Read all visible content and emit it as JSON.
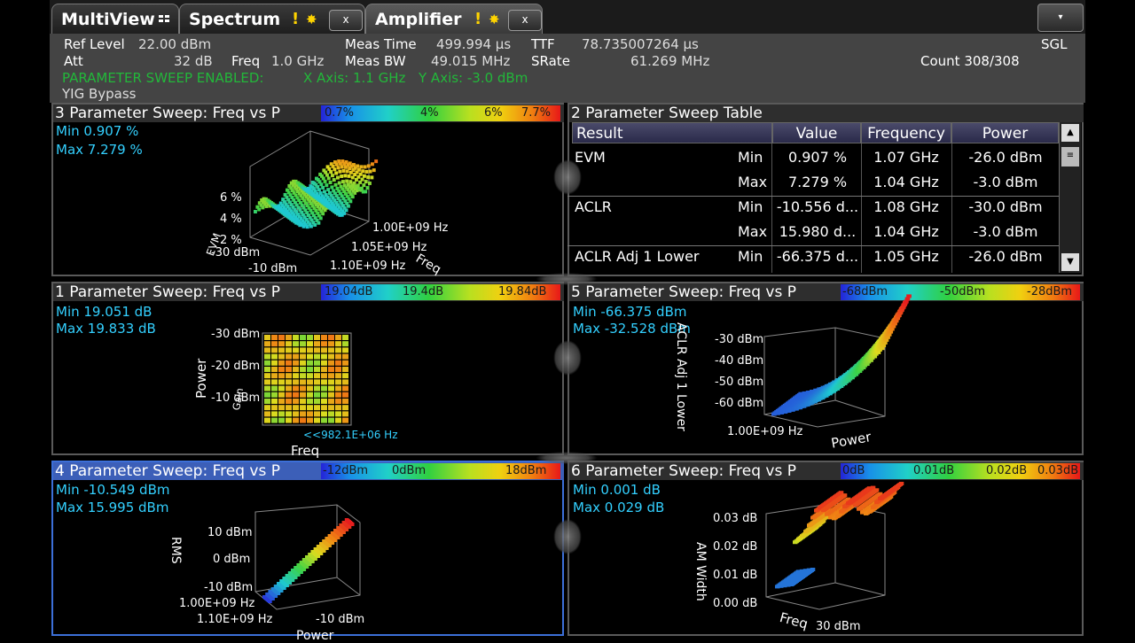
{
  "tabs": [
    {
      "label": "MultiView",
      "close": ""
    },
    {
      "label": "Spectrum",
      "close": "x"
    },
    {
      "label": "Amplifier",
      "close": "x"
    }
  ],
  "menu_button": "▾",
  "header": {
    "ref_level_label": "Ref Level",
    "ref_level_value": "22.00 dBm",
    "att_label": "Att",
    "att_value": "32 dB",
    "freq_label": "Freq",
    "freq_value": "1.0 GHz",
    "meas_time_label": "Meas Time",
    "meas_time_value": "499.994 µs",
    "meas_bw_label": "Meas BW",
    "meas_bw_value": "49.015 MHz",
    "ttf_label": "TTF",
    "ttf_value": "78.735007264 µs",
    "srate_label": "SRate",
    "srate_value": "61.269 MHz",
    "sgl": "SGL",
    "count": "Count 308/308",
    "param_sweep": "PARAMETER SWEEP ENABLED:",
    "x_axis": "X Axis: 1.1 GHz",
    "y_axis": "Y Axis: -3.0 dBm",
    "yig": "YIG Bypass"
  },
  "panels": {
    "p3": {
      "title": "3 Parameter Sweep: Freq vs P",
      "scale": [
        "0.7%",
        "4%",
        "6%",
        "7.7%"
      ],
      "min": "Min  0.907 %",
      "max": "Max  7.279 %",
      "z_ticks": [
        "6 %",
        "4 %",
        "2 %"
      ],
      "z_label": "EVM",
      "y_ticks": [
        "1.00E+09 Hz",
        "1.05E+09 Hz",
        "1.10E+09 Hz"
      ],
      "x_ticks": [
        "-30 dBm",
        "-10 dBm"
      ],
      "y_label": "Freq"
    },
    "p2": {
      "title": "2 Parameter Sweep Table",
      "columns": [
        "Result",
        "Value",
        "Frequency",
        "Power"
      ],
      "rows": [
        {
          "result": "EVM",
          "kind": "Min",
          "value": "0.907 %",
          "freq": "1.07 GHz",
          "power": "-26.0 dBm"
        },
        {
          "result": "",
          "kind": "Max",
          "value": "7.279 %",
          "freq": "1.04 GHz",
          "power": "-3.0 dBm"
        },
        {
          "result": "ACLR",
          "kind": "Min",
          "value": "-10.556 d...",
          "freq": "1.08 GHz",
          "power": "-30.0 dBm"
        },
        {
          "result": "",
          "kind": "Max",
          "value": "15.980 d...",
          "freq": "1.04 GHz",
          "power": "-3.0 dBm"
        },
        {
          "result": "ACLR Adj 1 Lower",
          "kind": "Min",
          "value": "-66.375 d...",
          "freq": "1.05 GHz",
          "power": "-26.0 dBm"
        }
      ]
    },
    "p1": {
      "title": "1 Parameter Sweep: Freq vs P",
      "scale": [
        "19.04dB",
        "19.4dB",
        "19.84dB"
      ],
      "min": "Min  19.051 dB",
      "max": "Max  19.833 dB",
      "y_ticks": [
        "-30 dBm",
        "-20 dBm",
        "-10 dBm"
      ],
      "y_label": "Power",
      "z_label": "Gain",
      "x_tick": "<<982.1E+06 Hz",
      "x_label": "Freq"
    },
    "p5": {
      "title": "5 Parameter Sweep: Freq vs P",
      "scale": [
        "-68dBm",
        "-50dBm",
        "-28dBm"
      ],
      "min": "Min  -66.375 dBm",
      "max": "Max -32.528 dBm",
      "z_ticks": [
        "-30 dBm",
        "-40 dBm",
        "-50 dBm",
        "-60 dBm"
      ],
      "z_label": "ACLR Adj 1 Lower",
      "y_tick": "1.00E+09 Hz",
      "x_label": "Power"
    },
    "p4": {
      "title": "4 Parameter Sweep: Freq vs P",
      "scale": [
        "-12dBm",
        "0dBm",
        "18dBm"
      ],
      "min": "Min  -10.549 dBm",
      "max": "Max  15.995 dBm",
      "z_ticks": [
        "10 dBm",
        "0 dBm",
        "-10 dBm"
      ],
      "z_label": "RMS",
      "y_ticks": [
        "1.00E+09 Hz",
        "1.10E+09 Hz"
      ],
      "x_tick": "-10 dBm",
      "x_label": "Power"
    },
    "p6": {
      "title": "6 Parameter Sweep: Freq vs P",
      "scale": [
        "0dB",
        "0.01dB",
        "0.02dB",
        "0.03dB"
      ],
      "min": "Min  0.001 dB",
      "max": "Max 0.029 dB",
      "z_ticks": [
        "0.03 dB",
        "0.02 dB",
        "0.01 dB",
        "0.00 dB"
      ],
      "z_label": "AM Width",
      "x_label": "Freq",
      "x_tick": "30 dBm"
    }
  }
}
